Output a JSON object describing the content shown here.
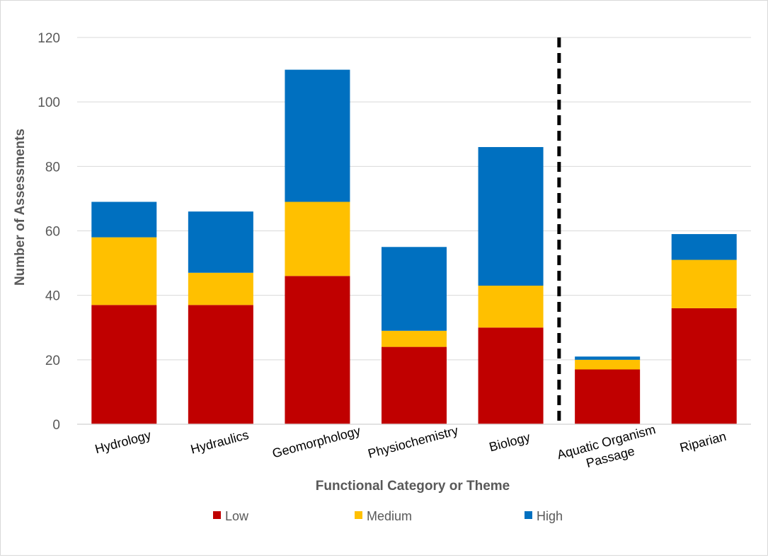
{
  "chart_data": {
    "type": "bar",
    "stacked": true,
    "categories": [
      "Hydrology",
      "Hydraulics",
      "Geomorphology",
      "Physiochemistry",
      "Biology",
      "Aquatic Organism|Passage",
      "Riparian"
    ],
    "series": [
      {
        "name": "Low",
        "color": "#c00000",
        "values": [
          37,
          37,
          46,
          24,
          30,
          17,
          36
        ]
      },
      {
        "name": "Medium",
        "color": "#ffc000",
        "values": [
          21,
          10,
          23,
          5,
          13,
          3,
          15
        ]
      },
      {
        "name": "High",
        "color": "#0070c0",
        "values": [
          11,
          19,
          41,
          26,
          43,
          1,
          8
        ]
      }
    ],
    "xlabel": "Functional  Category or Theme",
    "ylabel": "Number of Assessments",
    "ylim": [
      0,
      120
    ],
    "yticks": [
      0,
      20,
      40,
      60,
      80,
      100,
      120
    ],
    "grid": true,
    "legend": "bottom",
    "divider": {
      "after_category": "Biology",
      "style": "dashed",
      "color": "#000000"
    }
  }
}
